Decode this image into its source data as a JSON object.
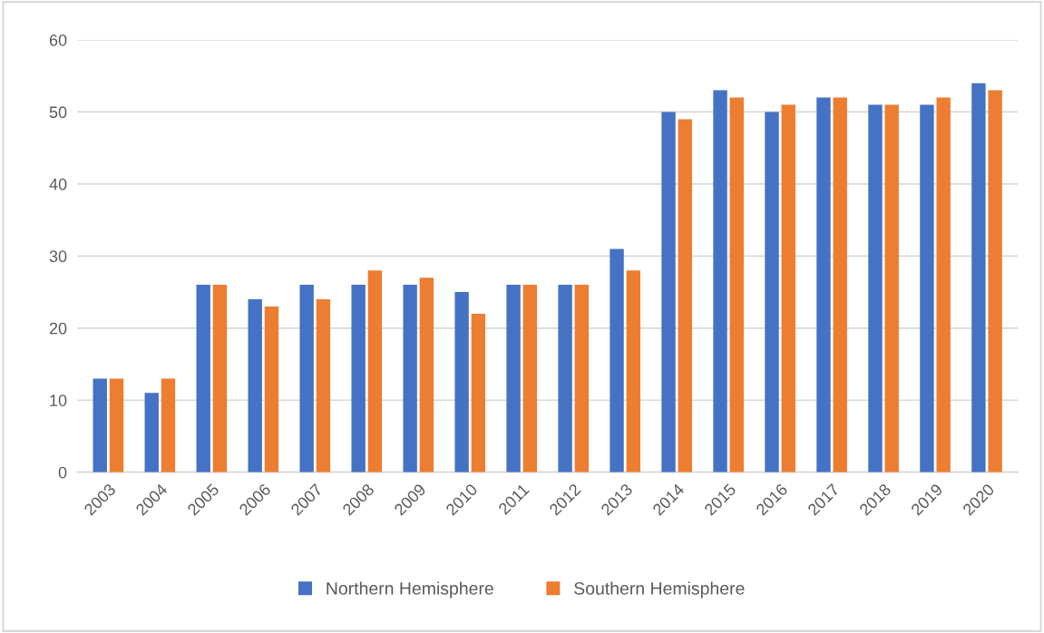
{
  "chart_data": {
    "type": "bar",
    "categories": [
      "2003",
      "2004",
      "2005",
      "2006",
      "2007",
      "2008",
      "2009",
      "2010",
      "2011",
      "2012",
      "2013",
      "2014",
      "2015",
      "2016",
      "2017",
      "2018",
      "2019",
      "2020"
    ],
    "series": [
      {
        "name": "Northern Hemisphere",
        "color": "#4472c4",
        "values": [
          13,
          11,
          26,
          24,
          26,
          26,
          26,
          25,
          26,
          26,
          31,
          50,
          53,
          50,
          52,
          51,
          51,
          54
        ]
      },
      {
        "name": "Southern Hemisphere",
        "color": "#ed7d31",
        "values": [
          13,
          13,
          26,
          23,
          24,
          28,
          27,
          22,
          26,
          26,
          28,
          49,
          52,
          51,
          52,
          51,
          52,
          53
        ]
      }
    ],
    "ylim": [
      0,
      60
    ],
    "yticks": [
      0,
      10,
      20,
      30,
      40,
      50,
      60
    ],
    "grid": "y",
    "legend": "bottom"
  }
}
